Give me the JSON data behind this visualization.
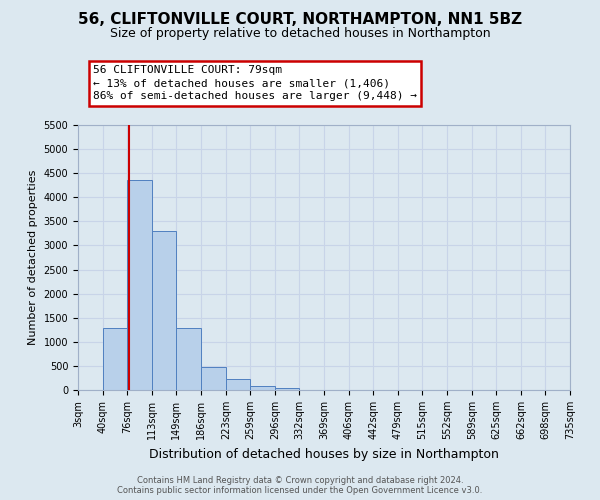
{
  "title": "56, CLIFTONVILLE COURT, NORTHAMPTON, NN1 5BZ",
  "subtitle": "Size of property relative to detached houses in Northampton",
  "xlabel": "Distribution of detached houses by size in Northampton",
  "ylabel": "Number of detached properties",
  "bin_edges": [
    3,
    40,
    76,
    113,
    149,
    186,
    223,
    259,
    296,
    332,
    369,
    406,
    442,
    479,
    515,
    552,
    589,
    625,
    662,
    698,
    735
  ],
  "bin_labels": [
    "3sqm",
    "40sqm",
    "76sqm",
    "113sqm",
    "149sqm",
    "186sqm",
    "223sqm",
    "259sqm",
    "296sqm",
    "332sqm",
    "369sqm",
    "406sqm",
    "442sqm",
    "479sqm",
    "515sqm",
    "552sqm",
    "589sqm",
    "625sqm",
    "662sqm",
    "698sqm",
    "735sqm"
  ],
  "counts": [
    0,
    1280,
    4350,
    3300,
    1280,
    480,
    230,
    90,
    50,
    0,
    0,
    0,
    0,
    0,
    0,
    0,
    0,
    0,
    0,
    0
  ],
  "bar_color": "#b8d0ea",
  "bar_edge_color": "#5080c0",
  "property_line_x": 79,
  "property_line_color": "#cc0000",
  "ylim": [
    0,
    5500
  ],
  "yticks": [
    0,
    500,
    1000,
    1500,
    2000,
    2500,
    3000,
    3500,
    4000,
    4500,
    5000,
    5500
  ],
  "annotation_title": "56 CLIFTONVILLE COURT: 79sqm",
  "annotation_line1": "← 13% of detached houses are smaller (1,406)",
  "annotation_line2": "86% of semi-detached houses are larger (9,448) →",
  "annotation_box_facecolor": "#ffffff",
  "annotation_box_edgecolor": "#cc0000",
  "grid_color": "#c8d4e8",
  "background_color": "#dce8f0",
  "footer1": "Contains HM Land Registry data © Crown copyright and database right 2024.",
  "footer2": "Contains public sector information licensed under the Open Government Licence v3.0.",
  "title_fontsize": 11,
  "subtitle_fontsize": 9,
  "xlabel_fontsize": 9,
  "ylabel_fontsize": 8,
  "tick_fontsize": 7,
  "ann_fontsize": 8,
  "footer_fontsize": 6
}
